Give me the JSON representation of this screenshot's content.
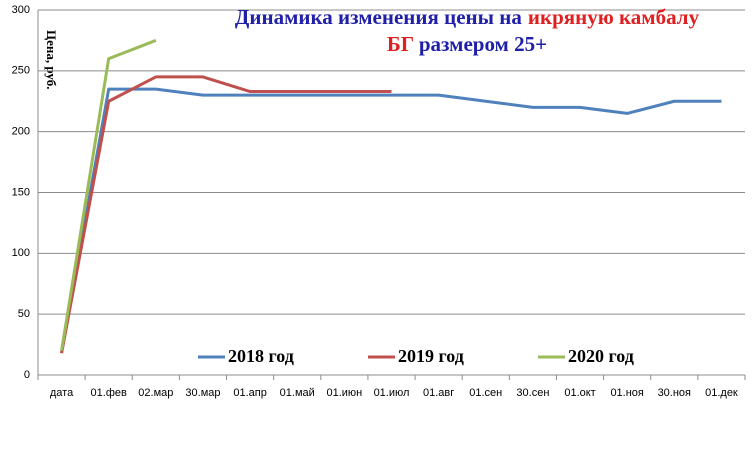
{
  "chart_data": {
    "type": "line",
    "title": [
      [
        {
          "text": "Динамика изменения  цены на",
          "color": "#1f1fa8"
        },
        {
          "text": "икряную камбалу",
          "color": "#e02020"
        }
      ],
      [
        {
          "text": "БГ",
          "color": "#e02020"
        },
        {
          "text": "размером 25+",
          "color": "#1f1fa8"
        }
      ]
    ],
    "y_label": "Цена, руб.",
    "categories": [
      "дата",
      "01.фев",
      "02.мар",
      "30.мар",
      "01.апр",
      "01.май",
      "01.июн",
      "01.июл",
      "01.авг",
      "01.сен",
      "30.сен",
      "01.окт",
      "01.ноя",
      "30.ноя",
      "01.дек"
    ],
    "series": [
      {
        "name": "2018 год",
        "color": "#4f81bd",
        "values": [
          18,
          235,
          235,
          230,
          230,
          230,
          230,
          230,
          230,
          225,
          220,
          220,
          215,
          225,
          225
        ]
      },
      {
        "name": "2019 год",
        "color": "#c0504d",
        "values": [
          18,
          225,
          245,
          245,
          233,
          233,
          233,
          233,
          null,
          null,
          null,
          null,
          null,
          null,
          null
        ]
      },
      {
        "name": "2020 год",
        "color": "#9bbb59",
        "values": [
          20,
          260,
          275,
          null,
          null,
          null,
          null,
          null,
          null,
          null,
          null,
          null,
          null,
          null,
          null
        ]
      }
    ],
    "ylim": [
      0,
      300
    ],
    "yticks": [
      0,
      50,
      100,
      150,
      200,
      250,
      300
    ],
    "grid": true,
    "legend": "bottom"
  }
}
